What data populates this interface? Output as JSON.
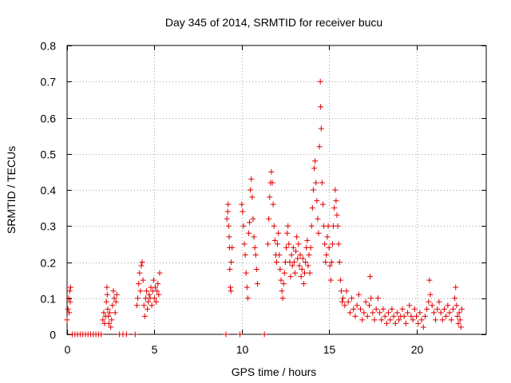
{
  "chart_data": {
    "type": "scatter",
    "title": "Day 345 of 2014, SRMTID for receiver bucu",
    "xlabel": "GPS time / hours",
    "ylabel": "SRMTID / TECUs",
    "xlim": [
      0,
      24
    ],
    "ylim": [
      0,
      0.8
    ],
    "xticks": [
      0,
      5,
      10,
      15,
      20
    ],
    "xtick_labels": [
      "0",
      "5",
      "10",
      "15",
      "20"
    ],
    "yticks": [
      0,
      0.1,
      0.2,
      0.3,
      0.4,
      0.5,
      0.6,
      0.7,
      0.8
    ],
    "ytick_labels": [
      "0",
      "0.1",
      "0.2",
      "0.3",
      "0.4",
      "0.5",
      "0.6",
      "0.7",
      "0.8"
    ],
    "grid": true,
    "marker": "+",
    "color": "#e00000",
    "series": [
      {
        "name": "bucu",
        "points": [
          [
            0.0,
            0.04
          ],
          [
            0.05,
            0.07
          ],
          [
            0.1,
            0.1
          ],
          [
            0.12,
            0.06
          ],
          [
            0.15,
            0.12
          ],
          [
            0.18,
            0.09
          ],
          [
            0.2,
            0.13
          ],
          [
            0.3,
            0.0
          ],
          [
            0.45,
            0.0
          ],
          [
            0.6,
            0.0
          ],
          [
            0.75,
            0.0
          ],
          [
            0.9,
            0.0
          ],
          [
            1.05,
            0.0
          ],
          [
            1.2,
            0.0
          ],
          [
            1.35,
            0.0
          ],
          [
            1.5,
            0.0
          ],
          [
            1.65,
            0.0
          ],
          [
            1.8,
            0.0
          ],
          [
            1.95,
            0.0
          ],
          [
            2.05,
            0.04
          ],
          [
            2.1,
            0.06
          ],
          [
            2.15,
            0.03
          ],
          [
            2.2,
            0.05
          ],
          [
            2.25,
            0.09
          ],
          [
            2.28,
            0.13
          ],
          [
            2.3,
            0.11
          ],
          [
            2.33,
            0.07
          ],
          [
            2.36,
            0.05
          ],
          [
            2.4,
            0.03
          ],
          [
            2.45,
            0.06
          ],
          [
            2.5,
            0.02
          ],
          [
            2.55,
            0.04
          ],
          [
            2.6,
            0.08
          ],
          [
            2.65,
            0.12
          ],
          [
            2.7,
            0.1
          ],
          [
            2.75,
            0.06
          ],
          [
            2.8,
            0.09
          ],
          [
            2.85,
            0.11
          ],
          [
            3.0,
            0.0
          ],
          [
            3.2,
            0.0
          ],
          [
            3.4,
            0.0
          ],
          [
            3.9,
            0.0
          ],
          [
            4.0,
            0.08
          ],
          [
            4.05,
            0.1
          ],
          [
            4.1,
            0.14
          ],
          [
            4.15,
            0.17
          ],
          [
            4.2,
            0.12
          ],
          [
            4.25,
            0.19
          ],
          [
            4.3,
            0.2
          ],
          [
            4.35,
            0.15
          ],
          [
            4.4,
            0.08
          ],
          [
            4.45,
            0.05
          ],
          [
            4.5,
            0.1
          ],
          [
            4.55,
            0.12
          ],
          [
            4.6,
            0.07
          ],
          [
            4.65,
            0.09
          ],
          [
            4.7,
            0.11
          ],
          [
            4.75,
            0.1
          ],
          [
            4.8,
            0.13
          ],
          [
            4.85,
            0.08
          ],
          [
            4.9,
            0.12
          ],
          [
            4.95,
            0.15
          ],
          [
            5.0,
            0.1
          ],
          [
            5.05,
            0.13
          ],
          [
            5.1,
            0.09
          ],
          [
            5.15,
            0.12
          ],
          [
            5.2,
            0.14
          ],
          [
            5.25,
            0.11
          ],
          [
            5.3,
            0.17
          ],
          [
            9.1,
            0.0
          ],
          [
            9.15,
            0.32
          ],
          [
            9.2,
            0.34
          ],
          [
            9.22,
            0.36
          ],
          [
            9.25,
            0.3
          ],
          [
            9.28,
            0.27
          ],
          [
            9.3,
            0.24
          ],
          [
            9.32,
            0.18
          ],
          [
            9.35,
            0.13
          ],
          [
            9.38,
            0.12
          ],
          [
            9.4,
            0.2
          ],
          [
            9.45,
            0.24
          ],
          [
            9.9,
            0.0
          ],
          [
            10.0,
            0.36
          ],
          [
            10.05,
            0.34
          ],
          [
            10.1,
            0.3
          ],
          [
            10.15,
            0.25
          ],
          [
            10.2,
            0.22
          ],
          [
            10.25,
            0.17
          ],
          [
            10.3,
            0.13
          ],
          [
            10.35,
            0.1
          ],
          [
            10.4,
            0.28
          ],
          [
            10.45,
            0.31
          ],
          [
            10.5,
            0.4
          ],
          [
            10.55,
            0.43
          ],
          [
            10.6,
            0.38
          ],
          [
            10.65,
            0.32
          ],
          [
            10.7,
            0.27
          ],
          [
            10.75,
            0.24
          ],
          [
            10.8,
            0.22
          ],
          [
            10.85,
            0.18
          ],
          [
            10.9,
            0.14
          ],
          [
            11.3,
            0.0
          ],
          [
            11.5,
            0.25
          ],
          [
            11.55,
            0.32
          ],
          [
            11.6,
            0.38
          ],
          [
            11.65,
            0.42
          ],
          [
            11.7,
            0.45
          ],
          [
            11.75,
            0.42
          ],
          [
            11.8,
            0.36
          ],
          [
            11.85,
            0.3
          ],
          [
            11.9,
            0.26
          ],
          [
            11.95,
            0.22
          ],
          [
            12.0,
            0.2
          ],
          [
            12.05,
            0.25
          ],
          [
            12.1,
            0.28
          ],
          [
            12.15,
            0.22
          ],
          [
            12.2,
            0.18
          ],
          [
            12.25,
            0.15
          ],
          [
            12.3,
            0.12
          ],
          [
            12.35,
            0.1
          ],
          [
            12.4,
            0.14
          ],
          [
            12.45,
            0.17
          ],
          [
            12.5,
            0.2
          ],
          [
            12.55,
            0.24
          ],
          [
            12.6,
            0.28
          ],
          [
            12.65,
            0.3
          ],
          [
            12.7,
            0.25
          ],
          [
            12.75,
            0.2
          ],
          [
            12.8,
            0.16
          ],
          [
            12.85,
            0.22
          ],
          [
            12.9,
            0.19
          ],
          [
            12.95,
            0.24
          ],
          [
            13.0,
            0.2
          ],
          [
            13.05,
            0.17
          ],
          [
            13.1,
            0.23
          ],
          [
            13.15,
            0.27
          ],
          [
            13.2,
            0.21
          ],
          [
            13.25,
            0.25
          ],
          [
            13.3,
            0.19
          ],
          [
            13.35,
            0.22
          ],
          [
            13.4,
            0.16
          ],
          [
            13.45,
            0.18
          ],
          [
            13.5,
            0.21
          ],
          [
            13.55,
            0.14
          ],
          [
            13.6,
            0.17
          ],
          [
            13.65,
            0.2
          ],
          [
            13.7,
            0.24
          ],
          [
            13.75,
            0.26
          ],
          [
            13.8,
            0.19
          ],
          [
            13.85,
            0.22
          ],
          [
            13.9,
            0.17
          ],
          [
            13.95,
            0.24
          ],
          [
            14.0,
            0.3
          ],
          [
            14.05,
            0.35
          ],
          [
            14.1,
            0.4
          ],
          [
            14.15,
            0.46
          ],
          [
            14.2,
            0.48
          ],
          [
            14.25,
            0.42
          ],
          [
            14.3,
            0.37
          ],
          [
            14.35,
            0.32
          ],
          [
            14.4,
            0.28
          ],
          [
            14.45,
            0.52
          ],
          [
            14.5,
            0.7
          ],
          [
            14.52,
            0.63
          ],
          [
            14.55,
            0.57
          ],
          [
            14.6,
            0.42
          ],
          [
            14.65,
            0.36
          ],
          [
            14.7,
            0.3
          ],
          [
            14.75,
            0.25
          ],
          [
            14.8,
            0.2
          ],
          [
            14.85,
            0.22
          ],
          [
            14.9,
            0.27
          ],
          [
            14.95,
            0.3
          ],
          [
            15.0,
            0.24
          ],
          [
            15.05,
            0.19
          ],
          [
            15.1,
            0.15
          ],
          [
            15.15,
            0.2
          ],
          [
            15.2,
            0.25
          ],
          [
            15.25,
            0.3
          ],
          [
            15.3,
            0.35
          ],
          [
            15.35,
            0.4
          ],
          [
            15.4,
            0.37
          ],
          [
            15.45,
            0.33
          ],
          [
            15.5,
            0.3
          ],
          [
            15.55,
            0.25
          ],
          [
            15.6,
            0.2
          ],
          [
            15.65,
            0.15
          ],
          [
            15.7,
            0.12
          ],
          [
            15.75,
            0.09
          ],
          [
            15.8,
            0.1
          ],
          [
            15.9,
            0.08
          ],
          [
            16.0,
            0.12
          ],
          [
            16.1,
            0.09
          ],
          [
            16.2,
            0.06
          ],
          [
            16.3,
            0.1
          ],
          [
            16.4,
            0.07
          ],
          [
            16.5,
            0.05
          ],
          [
            16.6,
            0.08
          ],
          [
            16.7,
            0.11
          ],
          [
            16.8,
            0.07
          ],
          [
            16.9,
            0.04
          ],
          [
            17.0,
            0.06
          ],
          [
            17.1,
            0.09
          ],
          [
            17.2,
            0.05
          ],
          [
            17.3,
            0.08
          ],
          [
            17.35,
            0.16
          ],
          [
            17.4,
            0.1
          ],
          [
            17.5,
            0.06
          ],
          [
            17.6,
            0.04
          ],
          [
            17.7,
            0.07
          ],
          [
            17.8,
            0.1
          ],
          [
            17.9,
            0.06
          ],
          [
            18.0,
            0.04
          ],
          [
            18.1,
            0.07
          ],
          [
            18.2,
            0.05
          ],
          [
            18.3,
            0.03
          ],
          [
            18.4,
            0.06
          ],
          [
            18.5,
            0.04
          ],
          [
            18.6,
            0.07
          ],
          [
            18.7,
            0.05
          ],
          [
            18.8,
            0.03
          ],
          [
            18.9,
            0.06
          ],
          [
            19.0,
            0.04
          ],
          [
            19.1,
            0.05
          ],
          [
            19.2,
            0.07
          ],
          [
            19.3,
            0.05
          ],
          [
            19.4,
            0.03
          ],
          [
            19.5,
            0.06
          ],
          [
            19.6,
            0.08
          ],
          [
            19.7,
            0.05
          ],
          [
            19.8,
            0.04
          ],
          [
            19.9,
            0.07
          ],
          [
            20.0,
            0.05
          ],
          [
            20.1,
            0.03
          ],
          [
            20.2,
            0.06
          ],
          [
            20.3,
            0.04
          ],
          [
            20.4,
            0.02
          ],
          [
            20.5,
            0.05
          ],
          [
            20.6,
            0.07
          ],
          [
            20.7,
            0.09
          ],
          [
            20.75,
            0.15
          ],
          [
            20.8,
            0.11
          ],
          [
            20.9,
            0.08
          ],
          [
            21.0,
            0.06
          ],
          [
            21.1,
            0.04
          ],
          [
            21.2,
            0.07
          ],
          [
            21.3,
            0.09
          ],
          [
            21.4,
            0.06
          ],
          [
            21.5,
            0.04
          ],
          [
            21.6,
            0.07
          ],
          [
            21.7,
            0.05
          ],
          [
            21.8,
            0.08
          ],
          [
            21.9,
            0.06
          ],
          [
            22.0,
            0.04
          ],
          [
            22.1,
            0.07
          ],
          [
            22.2,
            0.1
          ],
          [
            22.25,
            0.13
          ],
          [
            22.3,
            0.08
          ],
          [
            22.35,
            0.05
          ],
          [
            22.4,
            0.03
          ],
          [
            22.45,
            0.06
          ],
          [
            22.5,
            0.04
          ],
          [
            22.55,
            0.02
          ],
          [
            22.6,
            0.07
          ]
        ]
      }
    ]
  }
}
